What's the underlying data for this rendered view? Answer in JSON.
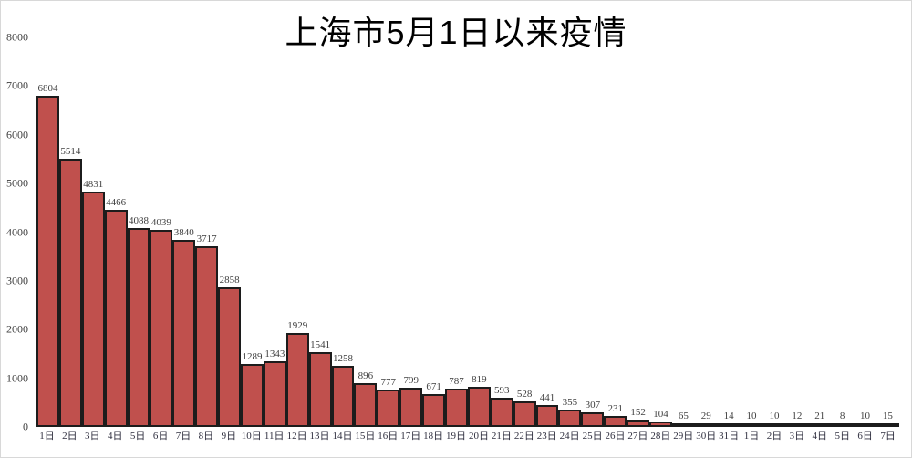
{
  "page": {
    "background": "#ffffff",
    "frame_border_color": "#d8d8d8"
  },
  "chart_data": {
    "type": "bar",
    "title": "上海市5月1日以来疫情",
    "categories": [
      "1日",
      "2日",
      "3日",
      "4日",
      "5日",
      "6日",
      "7日",
      "8日",
      "9日",
      "10日",
      "11日",
      "12日",
      "13日",
      "14日",
      "15日",
      "16日",
      "17日",
      "18日",
      "19日",
      "20日",
      "21日",
      "22日",
      "23日",
      "24日",
      "25日",
      "26日",
      "27日",
      "28日",
      "29日",
      "30日",
      "31日",
      "1日",
      "2日",
      "3日",
      "4日",
      "5日",
      "6日",
      "7日"
    ],
    "values": [
      6804,
      5514,
      4831,
      4466,
      4088,
      4039,
      3840,
      3717,
      2858,
      1289,
      1343,
      1929,
      1541,
      1258,
      896,
      777,
      799,
      671,
      787,
      819,
      593,
      528,
      441,
      355,
      307,
      231,
      152,
      104,
      65,
      29,
      14,
      10,
      10,
      12,
      21,
      8,
      10,
      15
    ],
    "xlabel": "",
    "ylabel": "",
    "ylim": [
      0,
      8000
    ],
    "yticks": [
      0,
      1000,
      2000,
      3000,
      4000,
      5000,
      6000,
      7000,
      8000
    ],
    "grid": false,
    "legend": null,
    "data_labels": true,
    "bar_color": "#C0504D",
    "bar_border_color": "#1c1c1c",
    "axis_line_color": "#595959",
    "label_color": "#3f3f3f",
    "title_color": "#000000"
  }
}
